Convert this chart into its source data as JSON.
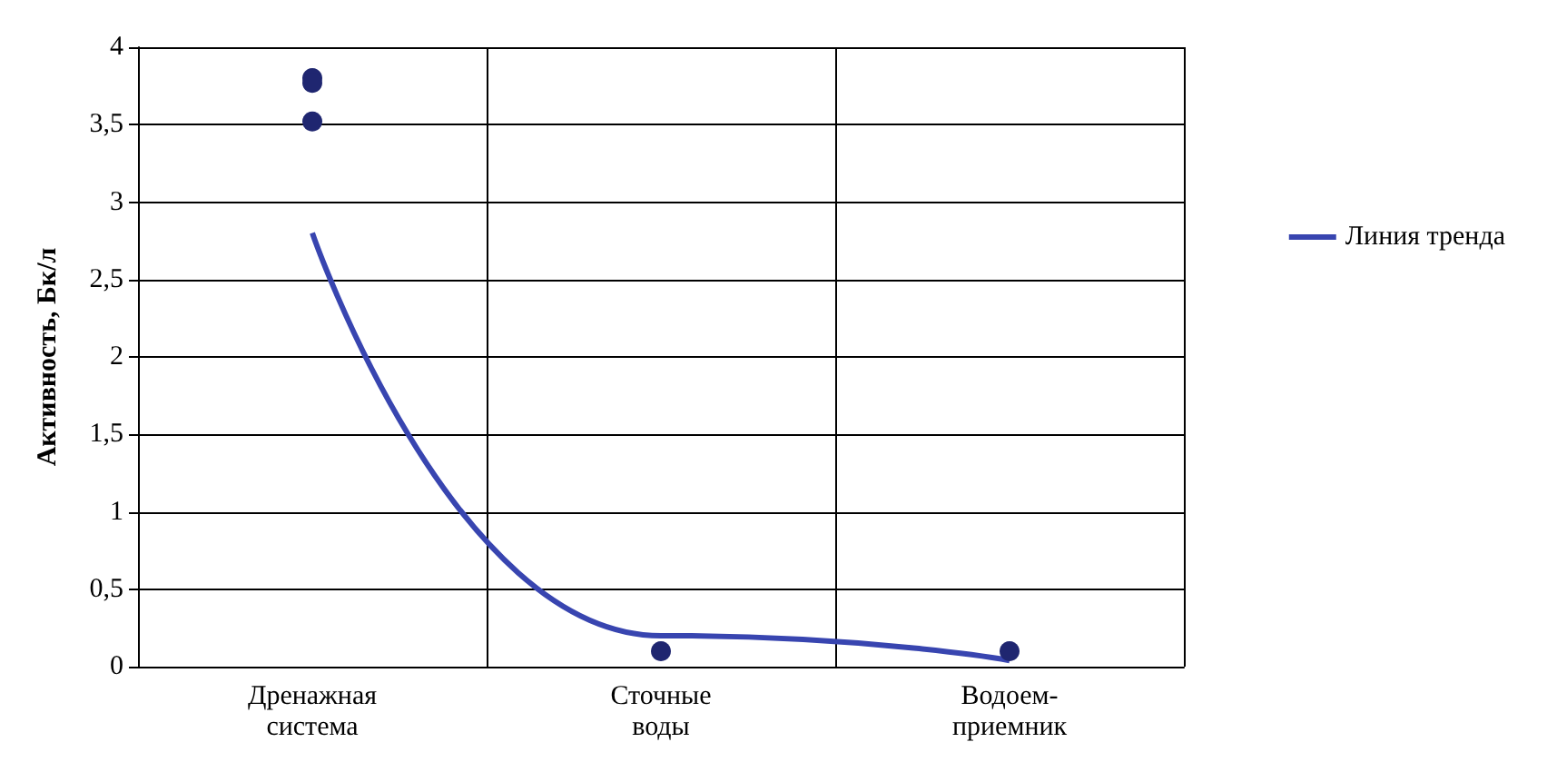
{
  "chart_data": {
    "type": "scatter",
    "ylabel": "Активность, Бк/л",
    "categories": [
      "Дренажная система",
      "Сточные воды",
      "Водоем-приемник"
    ],
    "series": [
      {
        "color": "#1f2670",
        "values": [
          3.8,
          0.1,
          0.1
        ]
      },
      {
        "color": "#1f2670",
        "values": [
          3.77,
          null,
          null
        ]
      },
      {
        "color": "#1f2670",
        "values": [
          3.52,
          null,
          null
        ]
      },
      {
        "type": "line",
        "name": "Линия тренда",
        "color": "#3845b0",
        "marker": "none",
        "values": [
          2.8,
          0.2,
          0.04
        ]
      }
    ],
    "ylim": [
      0,
      4
    ],
    "yticks": [
      0,
      {
        "value": 0.5,
        "label": "0,5"
      },
      1,
      {
        "value": 1.5,
        "label": "1,5"
      },
      2,
      {
        "value": 2.5,
        "label": "2,5"
      },
      3,
      {
        "value": 3.5,
        "label": "3,5"
      },
      4
    ],
    "grid": true,
    "legend": "right",
    "marker": "circle"
  }
}
